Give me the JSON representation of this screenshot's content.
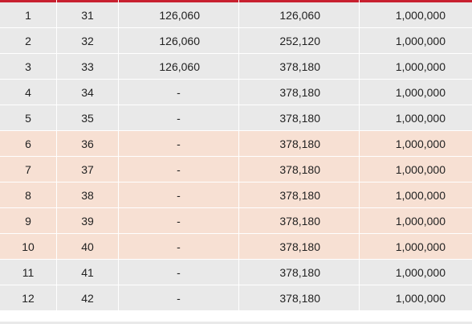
{
  "colors": {
    "accent": "#c8202f",
    "row_default": "#e9e9e9",
    "row_highlight": "#f7e0d3",
    "text": "#222222"
  },
  "table": {
    "rows": [
      {
        "n": "1",
        "age": "31",
        "payment": "126,060",
        "cumulative": "126,060",
        "coverage": "1,000,000",
        "highlight": false
      },
      {
        "n": "2",
        "age": "32",
        "payment": "126,060",
        "cumulative": "252,120",
        "coverage": "1,000,000",
        "highlight": false
      },
      {
        "n": "3",
        "age": "33",
        "payment": "126,060",
        "cumulative": "378,180",
        "coverage": "1,000,000",
        "highlight": false
      },
      {
        "n": "4",
        "age": "34",
        "payment": "-",
        "cumulative": "378,180",
        "coverage": "1,000,000",
        "highlight": false
      },
      {
        "n": "5",
        "age": "35",
        "payment": "-",
        "cumulative": "378,180",
        "coverage": "1,000,000",
        "highlight": false
      },
      {
        "n": "6",
        "age": "36",
        "payment": "-",
        "cumulative": "378,180",
        "coverage": "1,000,000",
        "highlight": true
      },
      {
        "n": "7",
        "age": "37",
        "payment": "-",
        "cumulative": "378,180",
        "coverage": "1,000,000",
        "highlight": true
      },
      {
        "n": "8",
        "age": "38",
        "payment": "-",
        "cumulative": "378,180",
        "coverage": "1,000,000",
        "highlight": true
      },
      {
        "n": "9",
        "age": "39",
        "payment": "-",
        "cumulative": "378,180",
        "coverage": "1,000,000",
        "highlight": true
      },
      {
        "n": "10",
        "age": "40",
        "payment": "-",
        "cumulative": "378,180",
        "coverage": "1,000,000",
        "highlight": true
      },
      {
        "n": "11",
        "age": "41",
        "payment": "-",
        "cumulative": "378,180",
        "coverage": "1,000,000",
        "highlight": false
      },
      {
        "n": "12",
        "age": "42",
        "payment": "-",
        "cumulative": "378,180",
        "coverage": "1,000,000",
        "highlight": false
      }
    ]
  }
}
